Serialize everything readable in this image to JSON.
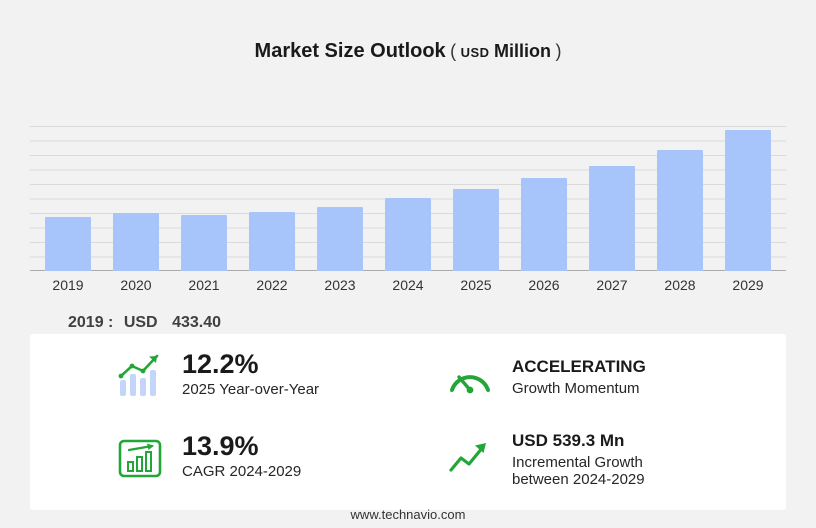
{
  "page": {
    "title": "Market Size Outlook",
    "paren_open": "(",
    "unit_currency": "USD",
    "unit_word": "Million",
    "paren_close": ")",
    "footer": "www.technavio.com"
  },
  "baseline_note": {
    "year_label": "2019 :",
    "currency": "USD",
    "value": "433.40"
  },
  "chart_data": {
    "type": "bar",
    "title": "Market Size Outlook (USD Million)",
    "categories": [
      "2019",
      "2020",
      "2021",
      "2022",
      "2023",
      "2024",
      "2025",
      "2026",
      "2027",
      "2028",
      "2029"
    ],
    "values": [
      433.4,
      468,
      446,
      471,
      516,
      587.8,
      659.5,
      742,
      843,
      972,
      1127.1
    ],
    "ylim": [
      0,
      1160
    ],
    "xlabel": "",
    "ylabel": "",
    "grid": true,
    "legend": false,
    "bar_color": "#a7c5fb"
  },
  "stats": [
    {
      "icon": "bar-growth-icon",
      "value": "12.2%",
      "label": "2025 Year-over-Year"
    },
    {
      "icon": "speedometer-icon",
      "value": "ACCELERATING",
      "label": "Growth Momentum"
    },
    {
      "icon": "chart-frame-icon",
      "value": "13.9%",
      "label": "CAGR 2024-2029"
    },
    {
      "icon": "trend-arrow-icon",
      "value": "USD 539.3 Mn",
      "label": "Incremental Growth between 2024-2029"
    }
  ],
  "colors": {
    "accent_green": "#23a638",
    "bar_blue": "#a7c5fb",
    "light_bar_blue": "#c3d6f9",
    "background": "#f2f2f2",
    "panel": "#ffffff"
  }
}
